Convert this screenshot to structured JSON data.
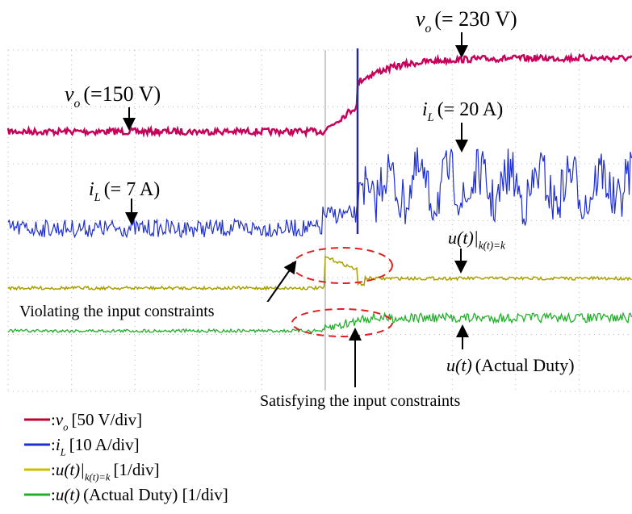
{
  "annotations": [
    {
      "symbol": "v",
      "subscript": "o",
      "text": "(= 230 V)"
    },
    {
      "symbol": "v",
      "subscript": "o",
      "text": "(=150 V)"
    },
    {
      "symbol": "i",
      "subscript": "L",
      "text": "(= 20 A)"
    },
    {
      "symbol": "i",
      "subscript": "L",
      "text": "(= 7 A)"
    },
    {
      "symbol": "u(t)|",
      "subscript": "k(t)=k"
    },
    {
      "symbol": "u(t)",
      "text": "(Actual Duty)"
    }
  ],
  "notes": [
    "Violating the input constraints",
    "Satisfying the input constraints"
  ],
  "legend": [
    {
      "color": "#c0002a",
      "prefix": ":",
      "symbol": "v",
      "subscript": "o",
      "text": "[50 V/div]"
    },
    {
      "color": "#1f2fd0",
      "prefix": ":",
      "symbol": "i",
      "subscript": "L",
      "text": "[10 A/div]"
    },
    {
      "color": "#c8c000",
      "prefix": ":",
      "symbol": "u(t)|",
      "subscript": "k(t)=k",
      "text": "[1/div]"
    },
    {
      "color": "#22b02a",
      "prefix": ":",
      "symbol": "u(t)",
      "text": "(Actual Duty) [1/div]"
    }
  ]
}
